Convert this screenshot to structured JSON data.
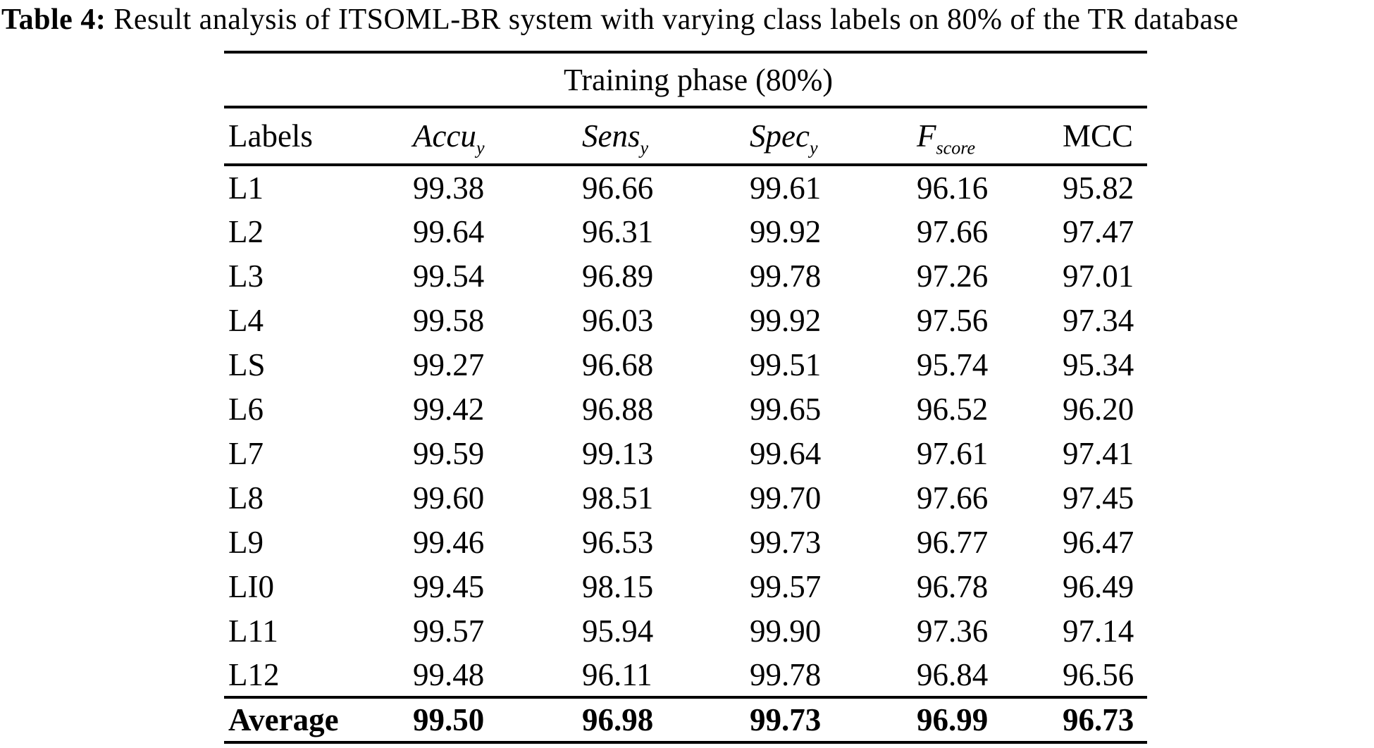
{
  "title": {
    "prefix": "Table 4:",
    "text": " Result analysis of ITSOML-BR system with varying class labels on 80% of the TR database"
  },
  "table": {
    "group_header": "Training phase (80%)",
    "columns": [
      {
        "main": "Labels",
        "sub": "",
        "italic": false
      },
      {
        "main": "Accu",
        "sub": "y",
        "italic": true
      },
      {
        "main": "Sens",
        "sub": "y",
        "italic": true
      },
      {
        "main": "Spec",
        "sub": "y",
        "italic": true
      },
      {
        "main": "F",
        "sub": "score",
        "italic": true
      },
      {
        "main": "MCC",
        "sub": "",
        "italic": false
      }
    ],
    "rows": [
      {
        "label": "L1",
        "values": [
          "99.38",
          "96.66",
          "99.61",
          "96.16",
          "95.82"
        ]
      },
      {
        "label": "L2",
        "values": [
          "99.64",
          "96.31",
          "99.92",
          "97.66",
          "97.47"
        ]
      },
      {
        "label": "L3",
        "values": [
          "99.54",
          "96.89",
          "99.78",
          "97.26",
          "97.01"
        ]
      },
      {
        "label": "L4",
        "values": [
          "99.58",
          "96.03",
          "99.92",
          "97.56",
          "97.34"
        ]
      },
      {
        "label": "LS",
        "values": [
          "99.27",
          "96.68",
          "99.51",
          "95.74",
          "95.34"
        ]
      },
      {
        "label": "L6",
        "values": [
          "99.42",
          "96.88",
          "99.65",
          "96.52",
          "96.20"
        ]
      },
      {
        "label": "L7",
        "values": [
          "99.59",
          "99.13",
          "99.64",
          "97.61",
          "97.41"
        ]
      },
      {
        "label": "L8",
        "values": [
          "99.60",
          "98.51",
          "99.70",
          "97.66",
          "97.45"
        ]
      },
      {
        "label": "L9",
        "values": [
          "99.46",
          "96.53",
          "99.73",
          "96.77",
          "96.47"
        ]
      },
      {
        "label": "LI0",
        "values": [
          "99.45",
          "98.15",
          "99.57",
          "96.78",
          "96.49"
        ]
      },
      {
        "label": "L11",
        "values": [
          "99.57",
          "95.94",
          "99.90",
          "97.36",
          "97.14"
        ]
      },
      {
        "label": "L12",
        "values": [
          "99.48",
          "96.11",
          "99.78",
          "96.84",
          "96.56"
        ]
      }
    ],
    "average": {
      "label": "Average",
      "values": [
        "99.50",
        "96.98",
        "99.73",
        "96.99",
        "96.73"
      ]
    },
    "text_color": "#000000",
    "background_color": "#ffffff"
  }
}
